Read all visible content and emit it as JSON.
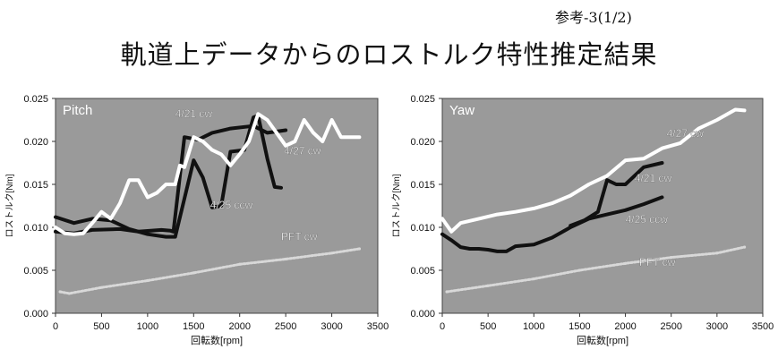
{
  "page": {
    "ref": "参考-3(1/2)",
    "title": "軌道上データからのロストルク特性推定結果"
  },
  "chart_data": [
    {
      "type": "line",
      "panel": "Pitch",
      "xlabel": "回転数[rpm]",
      "ylabel": "ロストルク[Nm]",
      "xlim": [
        0,
        3500
      ],
      "ylim": [
        0,
        0.025
      ],
      "xticks": [
        0,
        500,
        1000,
        1500,
        2000,
        2500,
        3000,
        3500
      ],
      "yticks": [
        "0.000",
        "0.005",
        "0.010",
        "0.015",
        "0.020",
        "0.025"
      ],
      "background": "#9a9a9a",
      "grid": false,
      "series": [
        {
          "name": "4/21 cw",
          "color": "#111111",
          "label_at": [
            1300,
            0.0228
          ],
          "x": [
            0,
            200,
            400,
            700,
            900,
            1150,
            1250,
            1280,
            1400,
            1550,
            1700,
            1900,
            2150,
            2300,
            2500
          ],
          "y": [
            0.0095,
            0.0093,
            0.0097,
            0.0098,
            0.0095,
            0.0097,
            0.0096,
            0.0095,
            0.0205,
            0.0202,
            0.021,
            0.0215,
            0.0218,
            0.021,
            0.0213
          ]
        },
        {
          "name": "4/25 ccw",
          "color": "#111111",
          "label_at": [
            1680,
            0.0122
          ],
          "x": [
            0,
            200,
            400,
            600,
            800,
            1000,
            1200,
            1300,
            1500,
            1600,
            1700,
            1800,
            1900,
            2050,
            2150,
            2200,
            2300,
            2380,
            2450
          ],
          "y": [
            0.0112,
            0.0105,
            0.011,
            0.0108,
            0.0098,
            0.0092,
            0.0089,
            0.0089,
            0.0178,
            0.0158,
            0.0123,
            0.0125,
            0.0188,
            0.019,
            0.0228,
            0.023,
            0.018,
            0.0147,
            0.0146
          ]
        },
        {
          "name": "4/27 cw",
          "color": "#ffffff",
          "label_at": [
            2480,
            0.0185
          ],
          "x": [
            0,
            100,
            200,
            300,
            400,
            500,
            600,
            700,
            800,
            900,
            1000,
            1100,
            1200,
            1300,
            1350,
            1400,
            1500,
            1600,
            1700,
            1800,
            1900,
            2000,
            2100,
            2200,
            2300,
            2400,
            2500,
            2600,
            2700,
            2800,
            2900,
            3000,
            3100,
            3200,
            3300
          ],
          "y": [
            0.01,
            0.0093,
            0.0092,
            0.0093,
            0.0105,
            0.0118,
            0.011,
            0.0128,
            0.0155,
            0.0155,
            0.0135,
            0.014,
            0.015,
            0.015,
            0.0172,
            0.017,
            0.0205,
            0.02,
            0.019,
            0.0185,
            0.0172,
            0.0185,
            0.02,
            0.0232,
            0.0225,
            0.021,
            0.0195,
            0.02,
            0.0225,
            0.021,
            0.02,
            0.0225,
            0.0205,
            0.0205,
            0.0205
          ]
        },
        {
          "name": "PFT cw",
          "color": "#d8d8d8",
          "label_at": [
            2450,
            0.0085
          ],
          "x": [
            50,
            150,
            500,
            1000,
            1500,
            2000,
            2500,
            3000,
            3300
          ],
          "y": [
            0.0025,
            0.0023,
            0.003,
            0.0038,
            0.0047,
            0.0057,
            0.0063,
            0.007,
            0.0075
          ]
        }
      ]
    },
    {
      "type": "line",
      "panel": "Yaw",
      "xlabel": "回転数[rpm]",
      "ylabel": "ロストルク[Nm]",
      "xlim": [
        0,
        3500
      ],
      "ylim": [
        0,
        0.025
      ],
      "xticks": [
        0,
        500,
        1000,
        1500,
        2000,
        2500,
        3000,
        3500
      ],
      "yticks": [
        "0.000",
        "0.005",
        "0.010",
        "0.015",
        "0.020",
        "0.025"
      ],
      "background": "#9a9a9a",
      "grid": false,
      "series": [
        {
          "name": "4/21 cw",
          "color": "#111111",
          "label_at": [
            2100,
            0.0153
          ],
          "x": [
            1400,
            1550,
            1700,
            1800,
            1900,
            2000,
            2200,
            2400
          ],
          "y": [
            0.0102,
            0.0108,
            0.0118,
            0.0155,
            0.015,
            0.015,
            0.017,
            0.0175
          ]
        },
        {
          "name": "4/25 ccw",
          "color": "#111111",
          "label_at": [
            2000,
            0.0105
          ],
          "x": [
            0,
            100,
            200,
            300,
            400,
            500,
            600,
            700,
            800,
            1000,
            1200,
            1400,
            1600,
            1800,
            2000,
            2200,
            2400
          ],
          "y": [
            0.0092,
            0.0085,
            0.0077,
            0.0075,
            0.0075,
            0.0074,
            0.0072,
            0.0072,
            0.0078,
            0.008,
            0.0088,
            0.01,
            0.011,
            0.0115,
            0.012,
            0.0127,
            0.0135
          ]
        },
        {
          "name": "4/27 cw",
          "color": "#ffffff",
          "label_at": [
            2450,
            0.0205
          ],
          "x": [
            0,
            100,
            200,
            400,
            600,
            800,
            1000,
            1200,
            1400,
            1600,
            1800,
            2000,
            2200,
            2400,
            2600,
            2800,
            3000,
            3200,
            3300
          ],
          "y": [
            0.011,
            0.0095,
            0.0105,
            0.011,
            0.0115,
            0.0118,
            0.0122,
            0.0128,
            0.0137,
            0.015,
            0.016,
            0.0178,
            0.018,
            0.0192,
            0.0198,
            0.0215,
            0.0225,
            0.0237,
            0.0236
          ]
        },
        {
          "name": "PFT cw",
          "color": "#d8d8d8",
          "label_at": [
            2150,
            0.0055
          ],
          "x": [
            50,
            500,
            1000,
            1500,
            2000,
            2500,
            3000,
            3300
          ],
          "y": [
            0.0025,
            0.0032,
            0.004,
            0.005,
            0.0058,
            0.0065,
            0.007,
            0.0077
          ]
        }
      ]
    }
  ]
}
